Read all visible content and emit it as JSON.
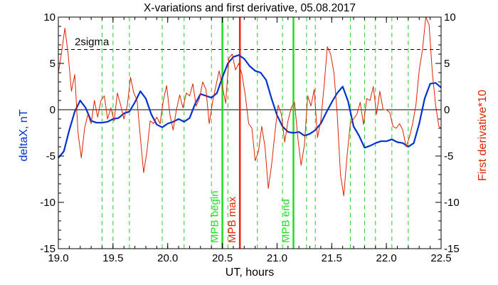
{
  "chart_data": {
    "type": "line",
    "title": "X-variations and first derivative, 05.08.2017",
    "xlabel": "UT, hours",
    "ylabel_left": "deltaX, nT",
    "ylabel_right": "First derivative*10",
    "xlim": [
      19.0,
      22.5
    ],
    "ylim": [
      -15,
      10
    ],
    "x_ticks": [
      19.0,
      19.5,
      20.0,
      20.5,
      21.0,
      21.5,
      22.0,
      22.5
    ],
    "x_tick_labels": [
      "19.0",
      "19.5",
      "20.0",
      "20.5",
      "21.0",
      "21.5",
      "22.0",
      "22.5"
    ],
    "y_ticks": [
      -15,
      -10,
      -5,
      0,
      5,
      10
    ],
    "y_tick_labels": [
      "-15",
      "-10",
      "-5",
      "0",
      "5",
      "10"
    ],
    "threshold": {
      "label": "2sigma",
      "value": 6.5,
      "style": "dashed",
      "color": "#000000"
    },
    "zero_line": 0,
    "markers": [
      {
        "label": "MPB begin",
        "x": 20.5,
        "color": "#22dd22"
      },
      {
        "label": "MPB max",
        "x": 20.66,
        "color": "#ee2200"
      },
      {
        "label": "MPB end",
        "x": 21.15,
        "color": "#22dd22"
      }
    ],
    "dashed_verticals": [
      19.4,
      19.5,
      19.65,
      19.95,
      20.15,
      20.4,
      20.55,
      20.82,
      21.05,
      21.27,
      21.35,
      21.67,
      21.8,
      21.9,
      22.05,
      22.2
    ],
    "dashed_vertical_color": "#22cc22",
    "series": [
      {
        "name": "deltaX",
        "color": "#0033cc",
        "axis": "left",
        "x": [
          19.0,
          19.05,
          19.1,
          19.15,
          19.2,
          19.25,
          19.3,
          19.35,
          19.4,
          19.45,
          19.5,
          19.55,
          19.6,
          19.65,
          19.7,
          19.75,
          19.8,
          19.85,
          19.9,
          19.95,
          20.0,
          20.05,
          20.1,
          20.15,
          20.2,
          20.25,
          20.3,
          20.35,
          20.4,
          20.45,
          20.5,
          20.55,
          20.6,
          20.65,
          20.7,
          20.75,
          20.8,
          20.85,
          20.9,
          20.95,
          21.0,
          21.05,
          21.1,
          21.15,
          21.2,
          21.25,
          21.3,
          21.35,
          21.4,
          21.45,
          21.5,
          21.55,
          21.6,
          21.65,
          21.7,
          21.75,
          21.8,
          21.85,
          21.9,
          21.95,
          22.0,
          22.05,
          22.1,
          22.15,
          22.2,
          22.25,
          22.3,
          22.35,
          22.4,
          22.45,
          22.5
        ],
        "y": [
          -5.2,
          -4.5,
          -2.2,
          -0.2,
          1.0,
          0.2,
          -1.2,
          -1.4,
          -1.4,
          -1.3,
          -1.0,
          -0.9,
          -0.4,
          -0.2,
          0.8,
          2.0,
          1.2,
          -0.5,
          -1.6,
          -1.9,
          -1.5,
          -1.3,
          -1.0,
          -1.3,
          -0.9,
          0.6,
          1.7,
          1.5,
          1.3,
          1.8,
          3.5,
          5.0,
          5.7,
          5.9,
          5.5,
          4.7,
          4.2,
          4.0,
          3.2,
          1.2,
          -0.6,
          -1.8,
          -2.4,
          -2.5,
          -2.4,
          -2.8,
          -2.6,
          -2.2,
          -1.5,
          -0.3,
          0.8,
          1.8,
          2.5,
          0.9,
          -1.8,
          -2.8,
          -4.1,
          -3.9,
          -3.6,
          -3.4,
          -3.4,
          -3.2,
          -3.5,
          -3.6,
          -4.0,
          -3.6,
          -1.5,
          1.2,
          2.8,
          2.9,
          2.4
        ]
      },
      {
        "name": "First derivative*10",
        "color": "#dd2200",
        "axis": "right",
        "x": [
          19.0,
          19.03,
          19.06,
          19.09,
          19.12,
          19.15,
          19.18,
          19.21,
          19.24,
          19.27,
          19.3,
          19.33,
          19.36,
          19.39,
          19.42,
          19.45,
          19.48,
          19.51,
          19.54,
          19.57,
          19.6,
          19.63,
          19.66,
          19.69,
          19.72,
          19.75,
          19.78,
          19.81,
          19.84,
          19.87,
          19.9,
          19.93,
          19.96,
          19.99,
          20.02,
          20.05,
          20.08,
          20.11,
          20.14,
          20.17,
          20.2,
          20.23,
          20.26,
          20.29,
          20.32,
          20.35,
          20.38,
          20.41,
          20.44,
          20.47,
          20.5,
          20.53,
          20.56,
          20.59,
          20.62,
          20.65,
          20.68,
          20.71,
          20.74,
          20.77,
          20.8,
          20.83,
          20.86,
          20.89,
          20.92,
          20.95,
          20.98,
          21.01,
          21.04,
          21.07,
          21.1,
          21.13,
          21.16,
          21.19,
          21.22,
          21.25,
          21.28,
          21.31,
          21.34,
          21.37,
          21.4,
          21.43,
          21.46,
          21.49,
          21.52,
          21.55,
          21.58,
          21.61,
          21.64,
          21.67,
          21.7,
          21.73,
          21.76,
          21.79,
          21.82,
          21.85,
          21.88,
          21.91,
          21.94,
          21.97,
          22.0,
          22.03,
          22.06,
          22.09,
          22.12,
          22.15,
          22.18,
          22.21,
          22.24,
          22.27,
          22.3,
          22.33,
          22.36,
          22.39,
          22.42,
          22.45,
          22.48,
          22.5
        ],
        "y": [
          4.0,
          6.2,
          8.8,
          6.0,
          2.0,
          3.8,
          -2.5,
          -5.2,
          -2.0,
          -0.5,
          -1.5,
          1.0,
          -0.8,
          1.0,
          1.5,
          -1.0,
          0.2,
          -1.2,
          1.8,
          0.5,
          -1.0,
          0.4,
          3.5,
          1.8,
          1.0,
          -3.0,
          -6.8,
          -4.5,
          -1.2,
          -1.5,
          -0.8,
          -1.5,
          1.0,
          2.6,
          -0.5,
          -2.2,
          0.0,
          1.6,
          0.2,
          1.8,
          1.5,
          2.8,
          0.4,
          1.2,
          3.0,
          2.2,
          -1.5,
          0.8,
          2.5,
          4.2,
          2.5,
          0.7,
          5.6,
          6.0,
          4.3,
          5.0,
          3.8,
          1.5,
          -1.5,
          -2.0,
          -5.5,
          -4.5,
          -1.8,
          -4.0,
          -8.5,
          -6.0,
          -2.5,
          0.5,
          -0.5,
          -3.5,
          -1.2,
          0.2,
          0.8,
          -3.0,
          -6.0,
          -3.8,
          1.5,
          0.4,
          2.2,
          -3.0,
          -1.2,
          2.5,
          6.8,
          6.0,
          4.0,
          -0.5,
          -7.0,
          -9.3,
          -5.0,
          -1.5,
          -1.0,
          -0.5,
          0.8,
          -1.6,
          1.2,
          1.0,
          2.5,
          -0.5,
          2.0,
          0.0,
          0.0,
          -0.3,
          -1.8,
          -2.0,
          -1.5,
          -2.2,
          -4.0,
          -3.0,
          -1.5,
          0.5,
          4.3,
          6.5,
          10.0,
          9.2,
          4.0,
          0.5,
          -1.8,
          -2.0
        ]
      }
    ]
  }
}
